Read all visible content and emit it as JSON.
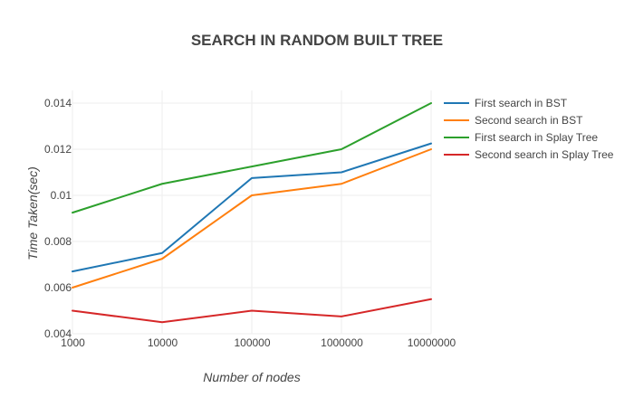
{
  "chart_data": {
    "type": "line",
    "title": "SEARCH IN RANDOM BUILT TREE",
    "xlabel": "Number of nodes",
    "ylabel": "Time Taken(sec)",
    "categories": [
      "1000",
      "10000",
      "100000",
      "1000000",
      "10000000"
    ],
    "x_scale": "categorical",
    "ylim": [
      0.004,
      0.0145
    ],
    "yticks": [
      "0.004",
      "0.006",
      "0.008",
      "0.01",
      "0.012",
      "0.014"
    ],
    "grid": true,
    "legend_position": "right",
    "series": [
      {
        "name": "First search in BST",
        "color": "#1f77b4",
        "values": [
          0.0067,
          0.0075,
          0.01075,
          0.011,
          0.01225
        ]
      },
      {
        "name": "Second search in BST",
        "color": "#ff7f0e",
        "values": [
          0.006,
          0.00725,
          0.01,
          0.0105,
          0.012
        ]
      },
      {
        "name": "First search in Splay Tree",
        "color": "#2ca02c",
        "values": [
          0.00925,
          0.0105,
          0.01125,
          0.012,
          0.014
        ]
      },
      {
        "name": "Second search in Splay Tree",
        "color": "#d62728",
        "values": [
          0.005,
          0.0045,
          0.005,
          0.00475,
          0.0055
        ]
      }
    ]
  }
}
